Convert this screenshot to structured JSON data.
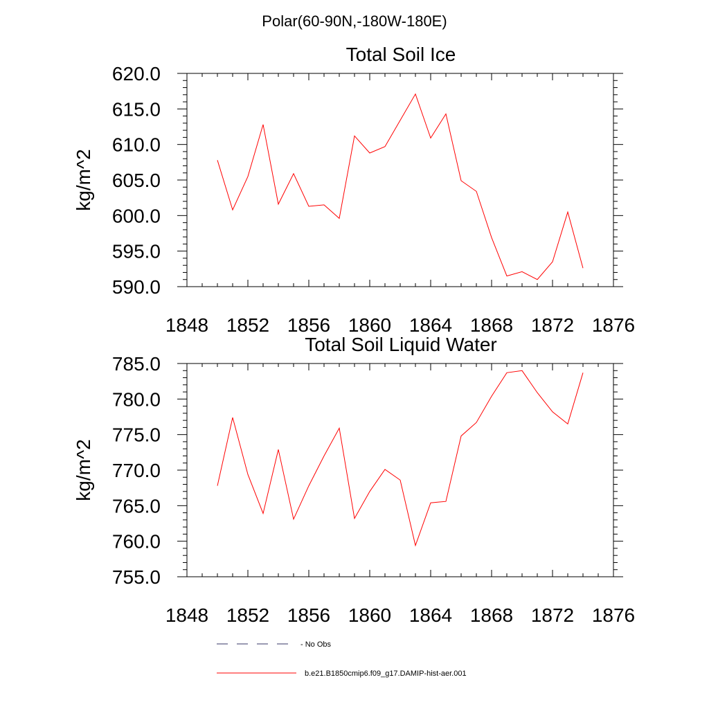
{
  "figure_title": "Polar(60-90N,-180W-180E)",
  "legend": {
    "items": [
      {
        "label": "No Obs",
        "color": "#333366",
        "dash": "dashed"
      },
      {
        "label": "b.e21.B1850cmip6.f09_g17.DAMIP-hist-aer.001",
        "color": "#ff0000",
        "dash": "solid"
      }
    ]
  },
  "chart_data": [
    {
      "type": "line",
      "title": "Total Soil Ice",
      "ylabel": "kg/m^2",
      "xlabel": "",
      "xlim": [
        1848,
        1876
      ],
      "ylim": [
        590,
        620
      ],
      "xticks": [
        1848,
        1852,
        1856,
        1860,
        1864,
        1868,
        1872,
        1876
      ],
      "yticks": [
        "590.0",
        "595.0",
        "600.0",
        "605.0",
        "610.0",
        "615.0",
        "620.0"
      ],
      "series": [
        {
          "color": "#ff0000",
          "x": [
            1850,
            1851,
            1852,
            1853,
            1854,
            1855,
            1856,
            1857,
            1858,
            1859,
            1860,
            1861,
            1862,
            1863,
            1864,
            1865,
            1866,
            1867,
            1868,
            1869,
            1870,
            1871,
            1872,
            1873,
            1874
          ],
          "values": [
            607.8,
            600.8,
            605.5,
            612.8,
            601.6,
            605.9,
            601.3,
            601.5,
            599.6,
            611.2,
            608.8,
            609.7,
            613.4,
            617.1,
            610.9,
            614.3,
            604.9,
            603.4,
            596.9,
            591.5,
            592.1,
            591.0,
            593.5,
            600.5,
            592.6
          ]
        }
      ]
    },
    {
      "type": "line",
      "title": "Total Soil Liquid Water",
      "ylabel": "kg/m^2",
      "xlabel": "",
      "xlim": [
        1848,
        1876
      ],
      "ylim": [
        755,
        785
      ],
      "xticks": [
        1848,
        1852,
        1856,
        1860,
        1864,
        1868,
        1872,
        1876
      ],
      "yticks": [
        "755.0",
        "760.0",
        "765.0",
        "770.0",
        "775.0",
        "780.0",
        "785.0"
      ],
      "series": [
        {
          "color": "#ff0000",
          "x": [
            1850,
            1851,
            1852,
            1853,
            1854,
            1855,
            1856,
            1857,
            1858,
            1859,
            1860,
            1861,
            1862,
            1863,
            1864,
            1865,
            1866,
            1867,
            1868,
            1869,
            1870,
            1871,
            1872,
            1873,
            1874
          ],
          "values": [
            767.8,
            777.4,
            769.4,
            763.9,
            772.9,
            763.1,
            767.8,
            772.0,
            775.9,
            763.2,
            767.0,
            770.1,
            768.6,
            759.4,
            765.4,
            765.6,
            774.8,
            776.7,
            780.4,
            783.7,
            784.0,
            780.9,
            778.2,
            776.5,
            783.7
          ]
        }
      ]
    }
  ]
}
